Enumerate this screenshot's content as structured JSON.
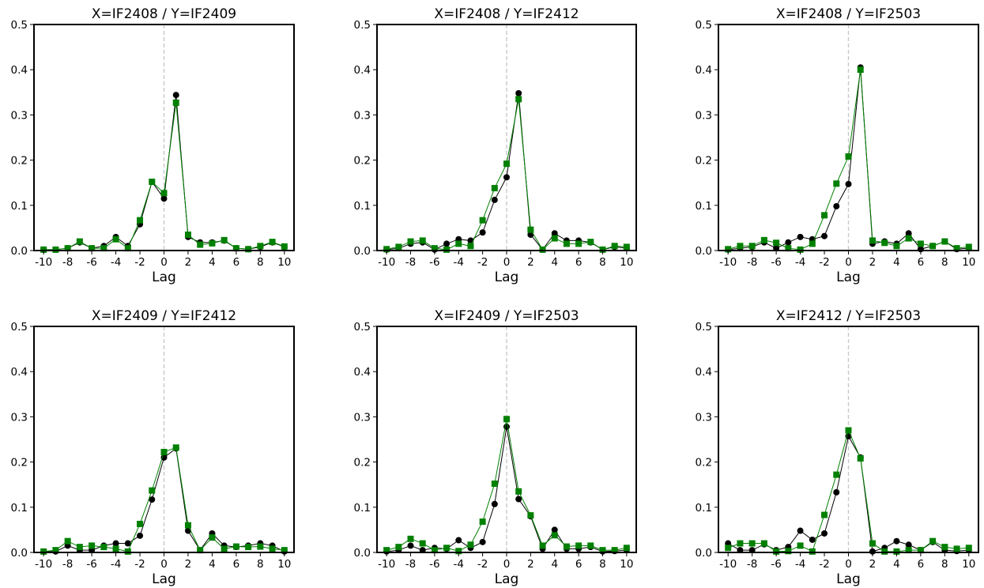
{
  "colors": {
    "series_a": "#000000",
    "series_b": "#008000",
    "zero_line": "#c8c8c8",
    "axes": "#000000"
  },
  "chart_data": [
    {
      "type": "line",
      "title": "X=IF2408 / Y=IF2409",
      "xlabel": "Lag",
      "ylabel": "",
      "xlim": [
        -10.8,
        10.8
      ],
      "ylim": [
        0,
        0.5
      ],
      "xticks": [
        "-10",
        "-8",
        "-6",
        "-4",
        "-2",
        "0",
        "2",
        "4",
        "6",
        "8",
        "10"
      ],
      "yticks": [
        "0.0",
        "0.1",
        "0.2",
        "0.3",
        "0.4",
        "0.5"
      ],
      "x": [
        -10,
        -9,
        -8,
        -7,
        -6,
        -5,
        -4,
        -3,
        -2,
        -1,
        0,
        1,
        2,
        3,
        4,
        5,
        6,
        7,
        8,
        9,
        10
      ],
      "series": [
        {
          "marker": "circle",
          "color": "#000000",
          "values": [
            0.002,
            0.002,
            0.005,
            0.018,
            0.005,
            0.01,
            0.03,
            0.01,
            0.058,
            0.152,
            0.115,
            0.344,
            0.03,
            0.018,
            0.018,
            0.022,
            0.005,
            0.003,
            0.008,
            0.018,
            0.008
          ]
        },
        {
          "marker": "square",
          "color": "#008000",
          "values": [
            0.002,
            0.002,
            0.005,
            0.02,
            0.005,
            0.005,
            0.025,
            0.005,
            0.067,
            0.152,
            0.127,
            0.327,
            0.035,
            0.013,
            0.016,
            0.023,
            0.005,
            0.003,
            0.01,
            0.019,
            0.009
          ]
        }
      ]
    },
    {
      "type": "line",
      "title": "X=IF2408 / Y=IF2412",
      "xlabel": "Lag",
      "ylabel": "",
      "xlim": [
        -10.8,
        10.8
      ],
      "ylim": [
        0,
        0.5
      ],
      "xticks": [
        "-10",
        "-8",
        "-6",
        "-4",
        "-2",
        "0",
        "2",
        "4",
        "6",
        "8",
        "10"
      ],
      "yticks": [
        "0.0",
        "0.1",
        "0.2",
        "0.3",
        "0.4",
        "0.5"
      ],
      "x": [
        -10,
        -9,
        -8,
        -7,
        -6,
        -5,
        -4,
        -3,
        -2,
        -1,
        0,
        1,
        2,
        3,
        4,
        5,
        6,
        7,
        8,
        9,
        10
      ],
      "series": [
        {
          "marker": "circle",
          "color": "#000000",
          "values": [
            0.002,
            0.005,
            0.015,
            0.018,
            0.002,
            0.015,
            0.025,
            0.022,
            0.04,
            0.112,
            0.162,
            0.348,
            0.035,
            0.002,
            0.038,
            0.022,
            0.022,
            0.018,
            0.002,
            0.008,
            0.005
          ]
        },
        {
          "marker": "square",
          "color": "#008000",
          "values": [
            0.003,
            0.008,
            0.02,
            0.022,
            0.005,
            0.002,
            0.015,
            0.01,
            0.067,
            0.138,
            0.192,
            0.335,
            0.046,
            0.002,
            0.027,
            0.015,
            0.015,
            0.019,
            0.002,
            0.01,
            0.008
          ]
        }
      ]
    },
    {
      "type": "line",
      "title": "X=IF2408 / Y=IF2503",
      "xlabel": "Lag",
      "ylabel": "",
      "xlim": [
        -10.8,
        10.8
      ],
      "ylim": [
        0,
        0.5
      ],
      "xticks": [
        "-10",
        "-8",
        "-6",
        "-4",
        "-2",
        "0",
        "2",
        "4",
        "6",
        "8",
        "10"
      ],
      "yticks": [
        "0.0",
        "0.1",
        "0.2",
        "0.3",
        "0.4",
        "0.5"
      ],
      "x": [
        -10,
        -9,
        -8,
        -7,
        -6,
        -5,
        -4,
        -3,
        -2,
        -1,
        0,
        1,
        2,
        3,
        4,
        5,
        6,
        7,
        8,
        9,
        10
      ],
      "series": [
        {
          "marker": "circle",
          "color": "#000000",
          "values": [
            0.002,
            0.005,
            0.008,
            0.018,
            0.005,
            0.018,
            0.03,
            0.025,
            0.032,
            0.098,
            0.147,
            0.405,
            0.015,
            0.02,
            0.015,
            0.038,
            0.003,
            0.01,
            0.02,
            0.003,
            0.005
          ]
        },
        {
          "marker": "square",
          "color": "#008000",
          "values": [
            0.003,
            0.01,
            0.01,
            0.023,
            0.017,
            0.005,
            0.002,
            0.015,
            0.078,
            0.148,
            0.208,
            0.4,
            0.022,
            0.017,
            0.01,
            0.027,
            0.015,
            0.01,
            0.02,
            0.005,
            0.008
          ]
        }
      ]
    },
    {
      "type": "line",
      "title": "X=IF2409 / Y=IF2412",
      "xlabel": "Lag",
      "ylabel": "",
      "xlim": [
        -10.8,
        10.8
      ],
      "ylim": [
        0,
        0.5
      ],
      "xticks": [
        "-10",
        "-8",
        "-6",
        "-4",
        "-2",
        "0",
        "2",
        "4",
        "6",
        "8",
        "10"
      ],
      "yticks": [
        "0.0",
        "0.1",
        "0.2",
        "0.3",
        "0.4",
        "0.5"
      ],
      "x": [
        -10,
        -9,
        -8,
        -7,
        -6,
        -5,
        -4,
        -3,
        -2,
        -1,
        0,
        1,
        2,
        3,
        4,
        5,
        6,
        7,
        8,
        9,
        10
      ],
      "series": [
        {
          "marker": "circle",
          "color": "#000000",
          "values": [
            0.002,
            0.002,
            0.015,
            0.005,
            0.005,
            0.015,
            0.02,
            0.02,
            0.037,
            0.117,
            0.21,
            0.23,
            0.048,
            0.005,
            0.042,
            0.015,
            0.012,
            0.015,
            0.02,
            0.015,
            0.002
          ]
        },
        {
          "marker": "square",
          "color": "#008000",
          "values": [
            0.002,
            0.005,
            0.025,
            0.012,
            0.015,
            0.012,
            0.008,
            0.002,
            0.063,
            0.137,
            0.222,
            0.232,
            0.06,
            0.005,
            0.033,
            0.008,
            0.013,
            0.012,
            0.013,
            0.008,
            0.005
          ]
        }
      ]
    },
    {
      "type": "line",
      "title": "X=IF2409 / Y=IF2503",
      "xlabel": "Lag",
      "ylabel": "",
      "xlim": [
        -10.8,
        10.8
      ],
      "ylim": [
        0,
        0.5
      ],
      "xticks": [
        "-10",
        "-8",
        "-6",
        "-4",
        "-2",
        "0",
        "2",
        "4",
        "6",
        "8",
        "10"
      ],
      "yticks": [
        "0.0",
        "0.1",
        "0.2",
        "0.3",
        "0.4",
        "0.5"
      ],
      "x": [
        -10,
        -9,
        -8,
        -7,
        -6,
        -5,
        -4,
        -3,
        -2,
        -1,
        0,
        1,
        2,
        3,
        4,
        5,
        6,
        7,
        8,
        9,
        10
      ],
      "series": [
        {
          "marker": "circle",
          "color": "#000000",
          "values": [
            0.002,
            0.005,
            0.015,
            0.005,
            0.01,
            0.008,
            0.027,
            0.01,
            0.023,
            0.107,
            0.278,
            0.118,
            0.08,
            0.008,
            0.05,
            0.008,
            0.008,
            0.012,
            0.002,
            0.003,
            0.005
          ]
        },
        {
          "marker": "square",
          "color": "#008000",
          "values": [
            0.005,
            0.012,
            0.03,
            0.02,
            0.005,
            0.01,
            0.003,
            0.017,
            0.068,
            0.152,
            0.295,
            0.135,
            0.082,
            0.015,
            0.038,
            0.013,
            0.015,
            0.015,
            0.005,
            0.005,
            0.01
          ]
        }
      ]
    },
    {
      "type": "line",
      "title": "X=IF2412 / Y=IF2503",
      "xlabel": "Lag",
      "ylabel": "",
      "xlim": [
        -10.8,
        10.8
      ],
      "ylim": [
        0,
        0.5
      ],
      "xticks": [
        "-10",
        "-8",
        "-6",
        "-4",
        "-2",
        "0",
        "2",
        "4",
        "6",
        "8",
        "10"
      ],
      "yticks": [
        "0.0",
        "0.1",
        "0.2",
        "0.3",
        "0.4",
        "0.5"
      ],
      "x": [
        -10,
        -9,
        -8,
        -7,
        -6,
        -5,
        -4,
        -3,
        -2,
        -1,
        0,
        1,
        2,
        3,
        4,
        5,
        6,
        7,
        8,
        9,
        10
      ],
      "series": [
        {
          "marker": "circle",
          "color": "#000000",
          "values": [
            0.02,
            0.005,
            0.005,
            0.018,
            0.005,
            0.012,
            0.048,
            0.028,
            0.042,
            0.133,
            0.257,
            0.21,
            0.002,
            0.01,
            0.025,
            0.017,
            0.005,
            0.023,
            0.005,
            0.003,
            0.005
          ]
        },
        {
          "marker": "square",
          "color": "#008000",
          "values": [
            0.01,
            0.02,
            0.02,
            0.02,
            0.002,
            0.003,
            0.015,
            0.002,
            0.083,
            0.172,
            0.27,
            0.208,
            0.02,
            0.002,
            0.002,
            0.005,
            0.005,
            0.025,
            0.012,
            0.008,
            0.01
          ]
        }
      ]
    }
  ]
}
